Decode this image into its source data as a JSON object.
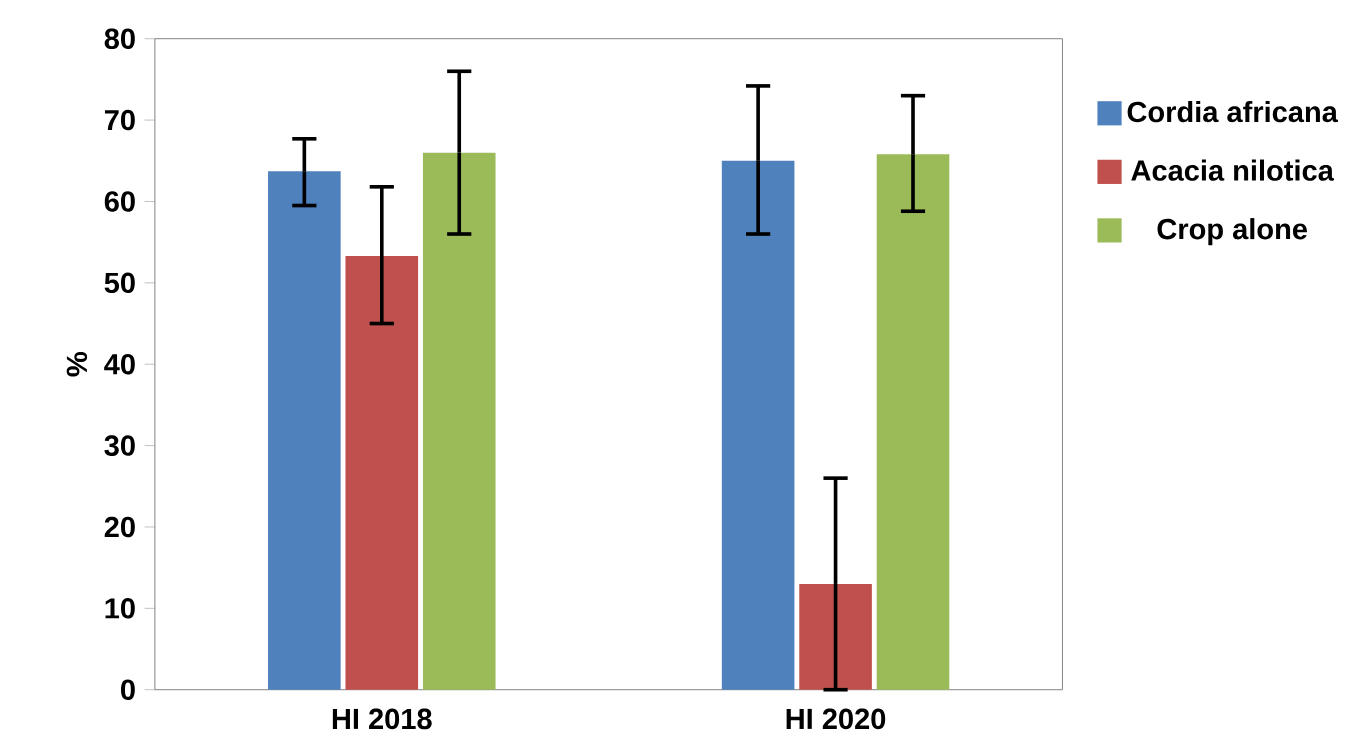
{
  "chart_data": {
    "type": "bar",
    "ylabel": "%",
    "categories": [
      "HI 2018",
      "HI 2020"
    ],
    "series": [
      {
        "name": "Cordia africana",
        "color": "#4f81bd",
        "values": [
          63.7,
          65
        ],
        "errors": [
          [
            59.5,
            67.7
          ],
          [
            56,
            74.2
          ]
        ]
      },
      {
        "name": "Acacia nilotica",
        "color": "#c0504d",
        "values": [
          53.3,
          13
        ],
        "errors": [
          [
            45,
            61.8
          ],
          [
            0,
            26
          ]
        ]
      },
      {
        "name": "Crop alone",
        "color": "#9bbb59",
        "values": [
          66,
          65.8
        ],
        "errors": [
          [
            56,
            76
          ],
          [
            58.8,
            73
          ]
        ]
      }
    ],
    "ylim": [
      0,
      80
    ],
    "yticks": [
      0,
      10,
      20,
      30,
      40,
      50,
      60,
      70,
      80
    ],
    "legend": "right",
    "grid": false
  }
}
